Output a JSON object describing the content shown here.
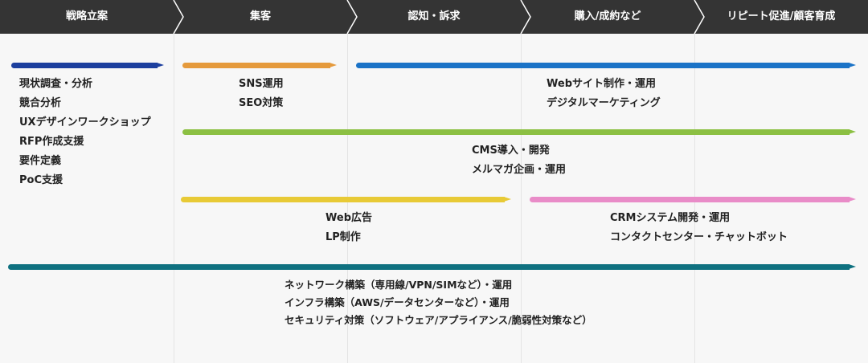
{
  "stages": [
    {
      "label": "戦略立案"
    },
    {
      "label": "集客"
    },
    {
      "label": "認知・訴求"
    },
    {
      "label": "購入/成約など"
    },
    {
      "label": "リピート促進/顧客育成"
    }
  ],
  "phases": {
    "strategy": {
      "color": "#1c3f9e",
      "items": [
        "現状調査・分析",
        "競合分析",
        "UXデザインワークショップ",
        "RFP作成支援",
        "要件定義",
        "PoC支援"
      ]
    },
    "sns_seo": {
      "color": "#e59a3c",
      "items": [
        "SNS運用",
        "SEO対策"
      ]
    },
    "web_site": {
      "color": "#1b73c7",
      "items": [
        "Webサイト制作・運用",
        "デジタルマーケティング"
      ]
    },
    "cms_mail": {
      "color": "#8cc043",
      "items": [
        "CMS導入・開発",
        "メルマガ企画・運用"
      ]
    },
    "ads_lp": {
      "color": "#e8ca36",
      "items": [
        "Web広告",
        "LP制作"
      ]
    },
    "crm_contact": {
      "color": "#e98cc8",
      "items": [
        "CRMシステム開発・運用",
        "コンタクトセンター・チャットボット"
      ]
    },
    "infra_security": {
      "color": "#0f7180",
      "items": [
        "ネットワーク構築（専用線/VPN/SIMなど）・運用",
        "インフラ構築（AWS/データセンターなど）・運用",
        "セキュリティ対策（ソフトウェア/アプライアンス/脆弱性対策など）"
      ]
    }
  }
}
